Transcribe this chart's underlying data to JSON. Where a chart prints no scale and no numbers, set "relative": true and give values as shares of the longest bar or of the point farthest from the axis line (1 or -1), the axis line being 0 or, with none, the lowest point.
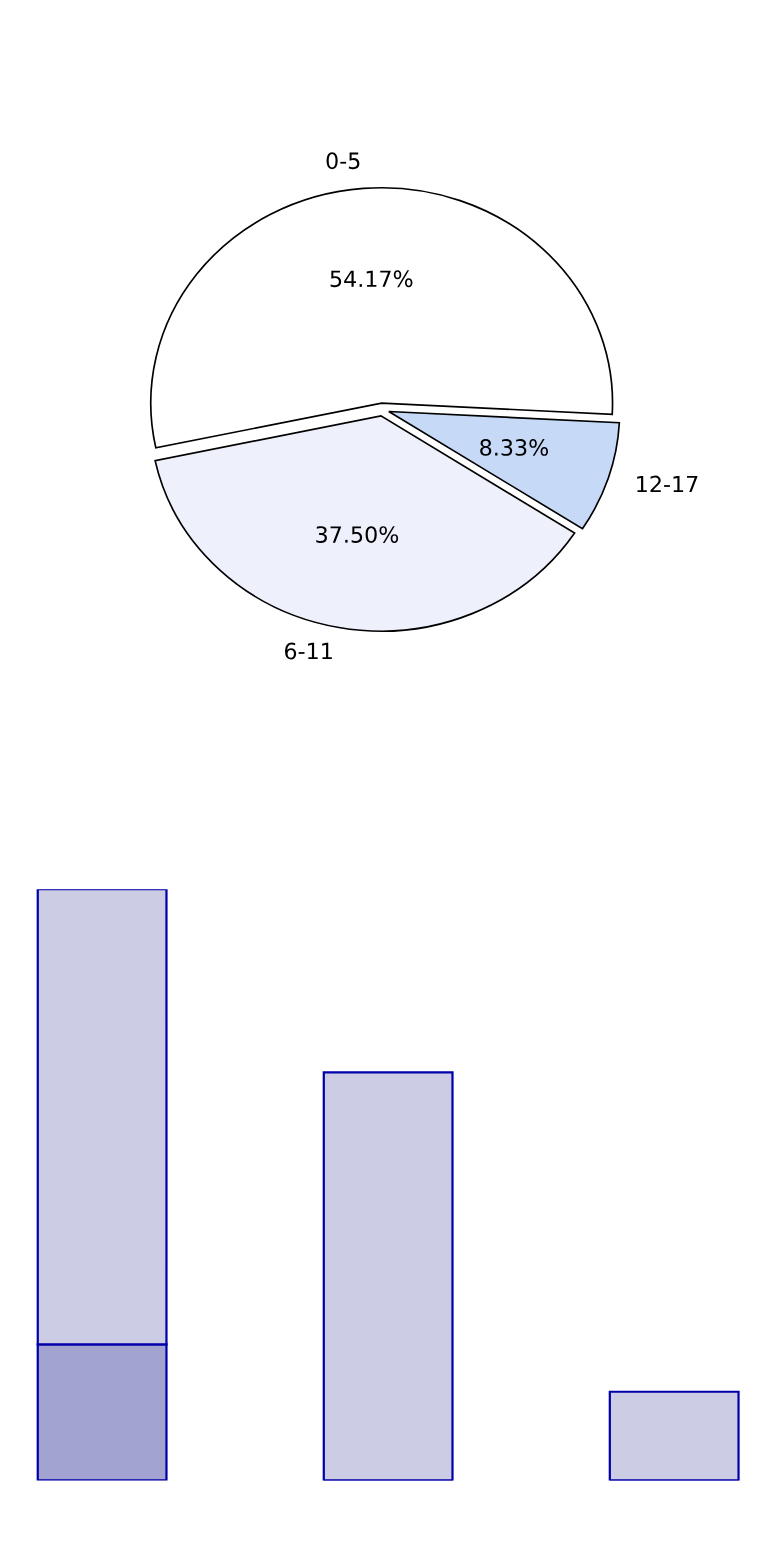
{
  "chart_data": [
    {
      "type": "pie",
      "categories": [
        "0-5",
        "6-11",
        "12-17"
      ],
      "values": [
        54.17,
        37.5,
        8.33
      ],
      "colors": [
        "#ffffff",
        "#eef0fb",
        "#c6d9f7"
      ],
      "value_labels": [
        "54.17%",
        "37.50%",
        "8.33%"
      ]
    },
    {
      "type": "bar",
      "relative": true,
      "stacked": true,
      "categories": [
        null,
        null,
        null
      ],
      "series": [
        {
          "color": "#a3a3d1",
          "values": [
            0.23,
            0,
            0
          ]
        },
        {
          "color": "#ccccE5",
          "values": [
            0.77,
            0.69,
            0.15
          ]
        }
      ]
    }
  ]
}
